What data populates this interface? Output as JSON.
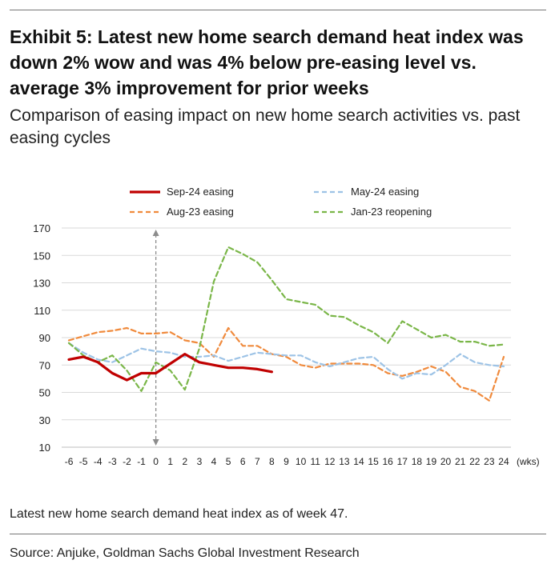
{
  "header": {
    "title": "Exhibit 5: Latest new home search demand heat index was down 2% wow and was 4% below pre-easing level vs. average 3% improvement for prior weeks",
    "subtitle": "Comparison of easing impact on new home search activities vs. past easing cycles"
  },
  "footer": {
    "note": "Latest new home search demand heat index as of week 47.",
    "source": "Source: Anjuke, Goldman Sachs Global Investment Research"
  },
  "chart_data": {
    "type": "line",
    "x": [
      -6,
      -5,
      -4,
      -3,
      -2,
      -1,
      0,
      1,
      2,
      3,
      4,
      5,
      6,
      7,
      8,
      9,
      10,
      11,
      12,
      13,
      14,
      15,
      16,
      17,
      18,
      19,
      20,
      21,
      22,
      23,
      24
    ],
    "x_unit_label": "(wks)",
    "ylim": [
      10,
      170
    ],
    "yticks": [
      10,
      30,
      50,
      70,
      90,
      110,
      130,
      150,
      170
    ],
    "grid": "horizontal",
    "annotation": "double-headed vertical arrow at week 0",
    "series": [
      {
        "name": "Sep-24 easing",
        "color": "#c00000",
        "style": "solid",
        "values": [
          74,
          76,
          72,
          64,
          59,
          64,
          64,
          71,
          78,
          72,
          70,
          68,
          68,
          67,
          65,
          null,
          null,
          null,
          null,
          null,
          null,
          null,
          null,
          null,
          null,
          null,
          null,
          null,
          null,
          null,
          null
        ]
      },
      {
        "name": "May-24 easing",
        "color": "#9dc3e6",
        "style": "dashed",
        "values": [
          86,
          79,
          74,
          72,
          77,
          82,
          80,
          79,
          76,
          76,
          77,
          73,
          76,
          79,
          78,
          77,
          77,
          72,
          69,
          72,
          75,
          76,
          67,
          60,
          64,
          63,
          70,
          78,
          72,
          70,
          69
        ]
      },
      {
        "name": "Aug-23 easing",
        "color": "#f08a3c",
        "style": "dashed",
        "values": [
          88,
          91,
          94,
          95,
          97,
          93,
          93,
          94,
          88,
          86,
          76,
          97,
          84,
          84,
          78,
          76,
          70,
          68,
          71,
          71,
          71,
          70,
          64,
          62,
          65,
          69,
          65,
          54,
          51,
          44,
          76
        ]
      },
      {
        "name": "Jan-23 reopening",
        "color": "#7ab648",
        "style": "dashed",
        "values": [
          86,
          77,
          72,
          77,
          66,
          51,
          72,
          66,
          52,
          82,
          131,
          156,
          151,
          145,
          132,
          118,
          116,
          114,
          106,
          105,
          99,
          94,
          86,
          102,
          96,
          90,
          92,
          87,
          87,
          84,
          85
        ]
      }
    ]
  }
}
